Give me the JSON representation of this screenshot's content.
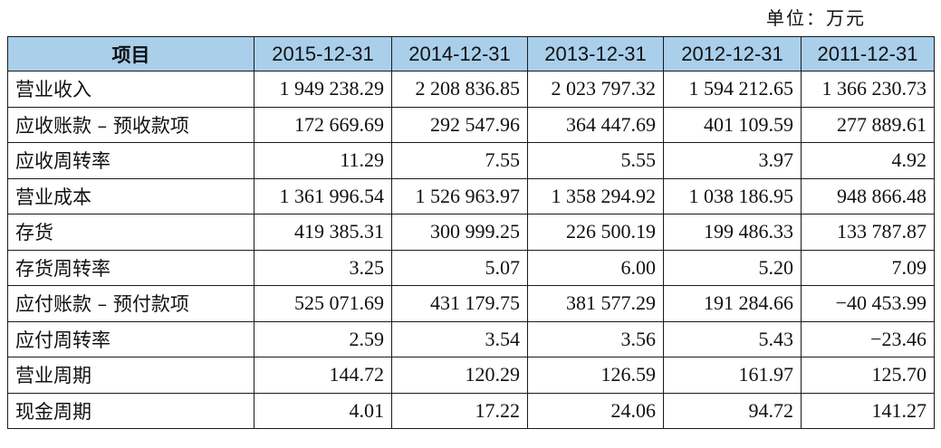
{
  "unit_note": "单位：万元",
  "table": {
    "header": {
      "label": "项目",
      "years": [
        "2015-12-31",
        "2014-12-31",
        "2013-12-31",
        "2012-12-31",
        "2011-12-31"
      ]
    },
    "rows": [
      {
        "label": "营业收入",
        "values": [
          "1 949 238.29",
          "2 208 836.85",
          "2 023 797.32",
          "1 594 212.65",
          "1 366 230.73"
        ]
      },
      {
        "label": "应收账款 – 预收款项",
        "values": [
          "172 669.69",
          "292 547.96",
          "364 447.69",
          "401 109.59",
          "277 889.61"
        ]
      },
      {
        "label": "应收周转率",
        "values": [
          "11.29",
          "7.55",
          "5.55",
          "3.97",
          "4.92"
        ]
      },
      {
        "label": "营业成本",
        "values": [
          "1 361 996.54",
          "1 526 963.97",
          "1 358 294.92",
          "1 038 186.95",
          "948 866.48"
        ]
      },
      {
        "label": "存货",
        "values": [
          "419 385.31",
          "300 999.25",
          "226 500.19",
          "199 486.33",
          "133 787.87"
        ]
      },
      {
        "label": "存货周转率",
        "values": [
          "3.25",
          "5.07",
          "6.00",
          "5.20",
          "7.09"
        ]
      },
      {
        "label": "应付账款 – 预付款项",
        "values": [
          "525 071.69",
          "431 179.75",
          "381 577.29",
          "191 284.66",
          "−40 453.99"
        ]
      },
      {
        "label": "应付周转率",
        "values": [
          "2.59",
          "3.54",
          "3.56",
          "5.43",
          "−23.46"
        ]
      },
      {
        "label": "营业周期",
        "values": [
          "144.72",
          "120.29",
          "126.59",
          "161.97",
          "125.70"
        ]
      },
      {
        "label": "现金周期",
        "values": [
          "4.01",
          "17.22",
          "24.06",
          "94.72",
          "141.27"
        ]
      }
    ]
  }
}
